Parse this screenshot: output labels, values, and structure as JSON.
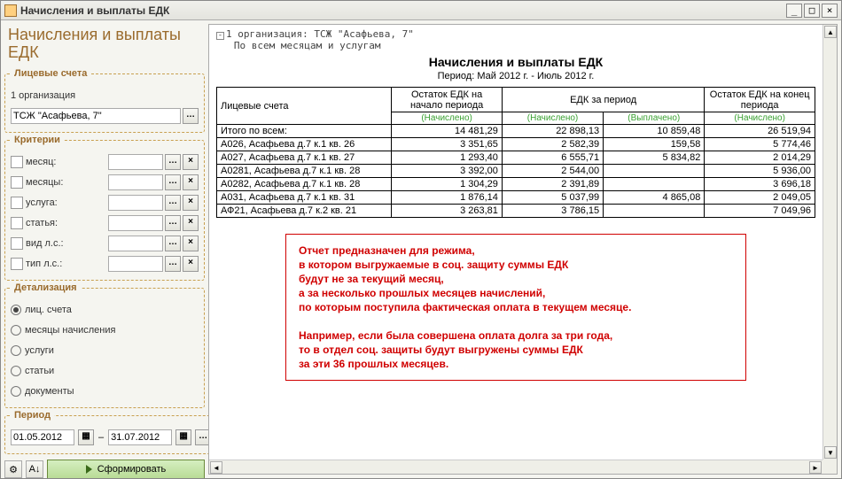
{
  "window": {
    "title": "Начисления и выплаты ЕДК"
  },
  "sidebar": {
    "heading": "Начисления и выплаты ЕДК",
    "accounts": {
      "legend": "Лицевые счета",
      "org_label": "1 организация",
      "org_value": "ТСЖ \"Асафьева, 7\""
    },
    "criteria": {
      "legend": "Критерии",
      "items": [
        {
          "label": "месяц:"
        },
        {
          "label": "месяцы:"
        },
        {
          "label": "услуга:"
        },
        {
          "label": "статья:"
        },
        {
          "label": "вид л.с.:"
        },
        {
          "label": "тип л.с.:"
        }
      ]
    },
    "detail": {
      "legend": "Детализация",
      "items": [
        {
          "label": "лиц. счета",
          "selected": true
        },
        {
          "label": "месяцы начисления",
          "selected": false
        },
        {
          "label": "услуги",
          "selected": false
        },
        {
          "label": "статьи",
          "selected": false
        },
        {
          "label": "документы",
          "selected": false
        }
      ]
    },
    "period": {
      "legend": "Период",
      "from": "01.05.2012",
      "to": "31.07.2012"
    },
    "form_button": "Сформировать"
  },
  "report": {
    "outline1": "1 организация: ТСЖ \"Асафьева, 7\"",
    "outline2": "По всем месяцам и услугам",
    "title": "Начисления и выплаты ЕДК",
    "period": "Период: Май 2012 г. - Июль 2012 г.",
    "header": {
      "col1": "Лицевые счета",
      "col2": "Остаток ЕДК на начало периода",
      "col3": "ЕДК за период",
      "col4": "Остаток ЕДК на конец периода",
      "sub_n": "(Начислено)",
      "sub_v": "(Выплачено)"
    },
    "total_label": "Итого по всем:",
    "total": {
      "c2": "14 481,29",
      "c3": "22 898,13",
      "c4": "10 859,48",
      "c5": "26 519,94"
    },
    "rows": [
      {
        "c1": "А026, Асафьева д.7 к.1 кв. 26",
        "c2": "3 351,65",
        "c3": "2 582,39",
        "c4": "159,58",
        "c5": "5 774,46"
      },
      {
        "c1": "А027, Асафьева д.7 к.1 кв. 27",
        "c2": "1 293,40",
        "c3": "6 555,71",
        "c4": "5 834,82",
        "c5": "2 014,29"
      },
      {
        "c1": "А0281, Асафьева д.7 к.1 кв. 28",
        "c2": "3 392,00",
        "c3": "2 544,00",
        "c4": "",
        "c5": "5 936,00"
      },
      {
        "c1": "А0282, Асафьева д.7 к.1 кв. 28",
        "c2": "1 304,29",
        "c3": "2 391,89",
        "c4": "",
        "c5": "3 696,18"
      },
      {
        "c1": "А031, Асафьева д.7 к.1 кв. 31",
        "c2": "1 876,14",
        "c3": "5 037,99",
        "c4": "4 865,08",
        "c5": "2 049,05"
      },
      {
        "c1": "АФ21, Асафьева д.7 к.2 кв. 21",
        "c2": "3 263,81",
        "c3": "3 786,15",
        "c4": "",
        "c5": "7 049,96"
      }
    ],
    "note": {
      "l1": "Отчет предназначен для режима,",
      "l2": "в котором выгружаемые в соц. защиту суммы ЕДК",
      "l3": "будут не за текущий месяц,",
      "l4": "а за несколько прошлых месяцев начислений,",
      "l5": "по которым поступила фактическая оплата в текущем месяце.",
      "l6": "Например, если была совершена оплата долга за три года,",
      "l7": "то в отдел соц. защиты будут выгружены суммы ЕДК",
      "l8": "за эти 36 прошлых месяцев."
    }
  }
}
